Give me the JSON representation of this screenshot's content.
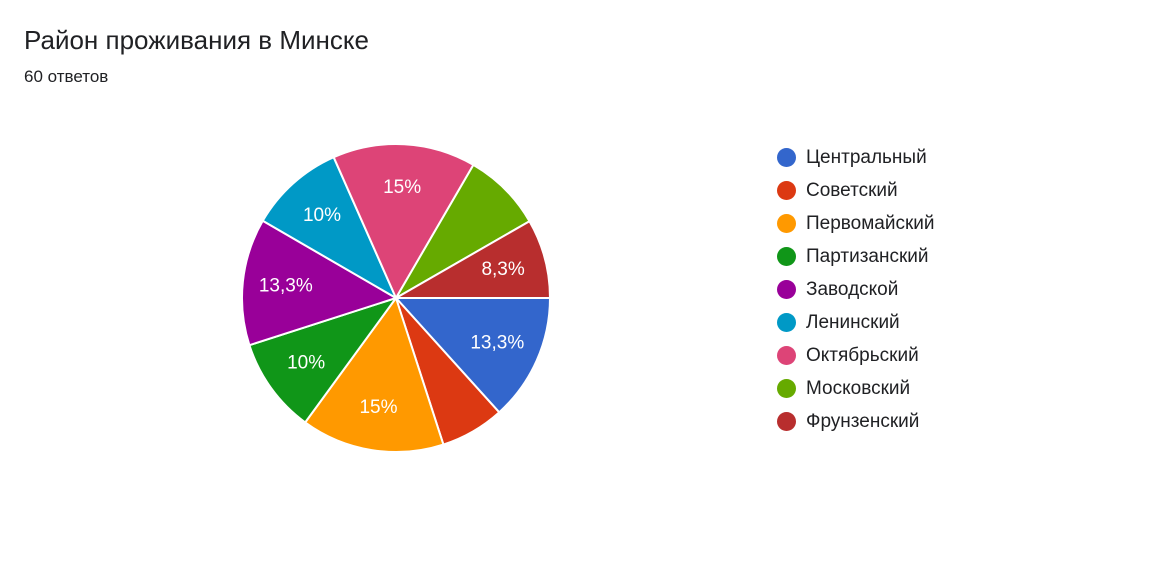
{
  "header": {
    "title": "Район проживания в Минске",
    "responses": "60 ответов"
  },
  "chart_data": {
    "type": "pie",
    "categories": [
      "Центральный",
      "Советский",
      "Первомайский",
      "Партизанский",
      "Заводской",
      "Ленинский",
      "Октябрьский",
      "Московский",
      "Фрунзенский"
    ],
    "values": [
      13.3,
      6.7,
      15,
      10,
      13.3,
      10,
      15,
      8.3,
      8.3
    ],
    "value_labels": [
      "13,3%",
      "",
      "15%",
      "10%",
      "13,3%",
      "10%",
      "15%",
      "",
      "8,3%"
    ],
    "colors": [
      "#3366cc",
      "#dc3912",
      "#ff9900",
      "#109618",
      "#990099",
      "#0099c6",
      "#dd4477",
      "#66aa00",
      "#b82e2e"
    ],
    "legend_position": "right"
  }
}
